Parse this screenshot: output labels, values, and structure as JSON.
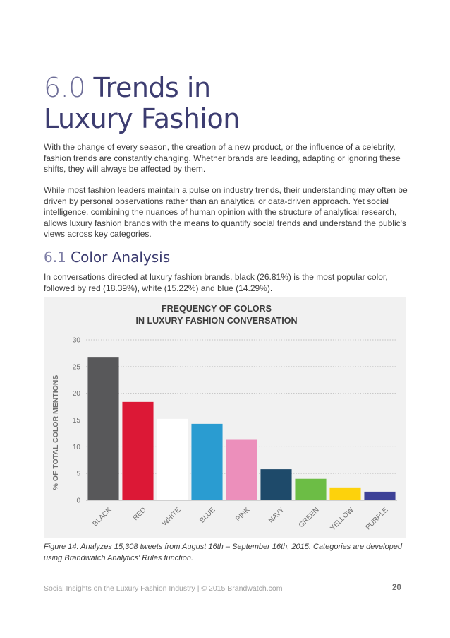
{
  "header": {
    "title_number": "6.0",
    "title_rest_line1": "Trends in",
    "title_line2": "Luxury Fashion"
  },
  "intro": {
    "paragraph1": "With the change of every season, the creation of a new product, or the influence of a celebrity, fashion trends are constantly changing. Whether brands are leading, adapting or ignoring these shifts, they will always be affected by them.",
    "paragraph2": "While most fashion leaders maintain a pulse on industry trends, their understanding may often be driven by personal observations rather than an analytical or data-driven approach. Yet social intelligence, combining the nuances of human opinion with the structure of analytical research, allows luxury fashion brands with the means to quantify social trends and understand the public's views across key categories."
  },
  "section": {
    "number": "6.1",
    "title": "Color Analysis",
    "text": "In conversations directed at luxury fashion brands, black (26.81%) is the most popular color, followed by red (18.39%), white (15.22%) and blue (14.29%)."
  },
  "chart_data": {
    "type": "bar",
    "title_line1": "FREQUENCY OF COLORS",
    "title_line2": "IN LUXURY FASHION CONVERSATION",
    "ylabel": "% OF TOTAL COLOR MENTIONS",
    "xlabel": "",
    "categories": [
      "BLACK",
      "RED",
      "WHITE",
      "BLUE",
      "PINK",
      "NAVY",
      "GREEN",
      "YELLOW",
      "PURPLE"
    ],
    "values": [
      26.81,
      18.39,
      15.22,
      14.29,
      11.3,
      5.8,
      4.0,
      2.4,
      1.6
    ],
    "colors": [
      "#58585a",
      "#dc1836",
      "#ffffff",
      "#2a9cd1",
      "#ec8fbb",
      "#1e4a6a",
      "#6cbd45",
      "#fdd20c",
      "#3d4197"
    ],
    "ylim": [
      0,
      30
    ],
    "yticks": [
      0,
      5,
      10,
      15,
      20,
      25,
      30
    ],
    "grid": true
  },
  "caption": "Figure 14: Analyzes 15,308 tweets from August 16th – September 16th, 2015. Categories are developed using Brandwatch Analytics' Rules function.",
  "footer": {
    "text": "Social Insights on the Luxury Fashion Industry  |  © 2015 Brandwatch.com",
    "page_number": "20"
  }
}
